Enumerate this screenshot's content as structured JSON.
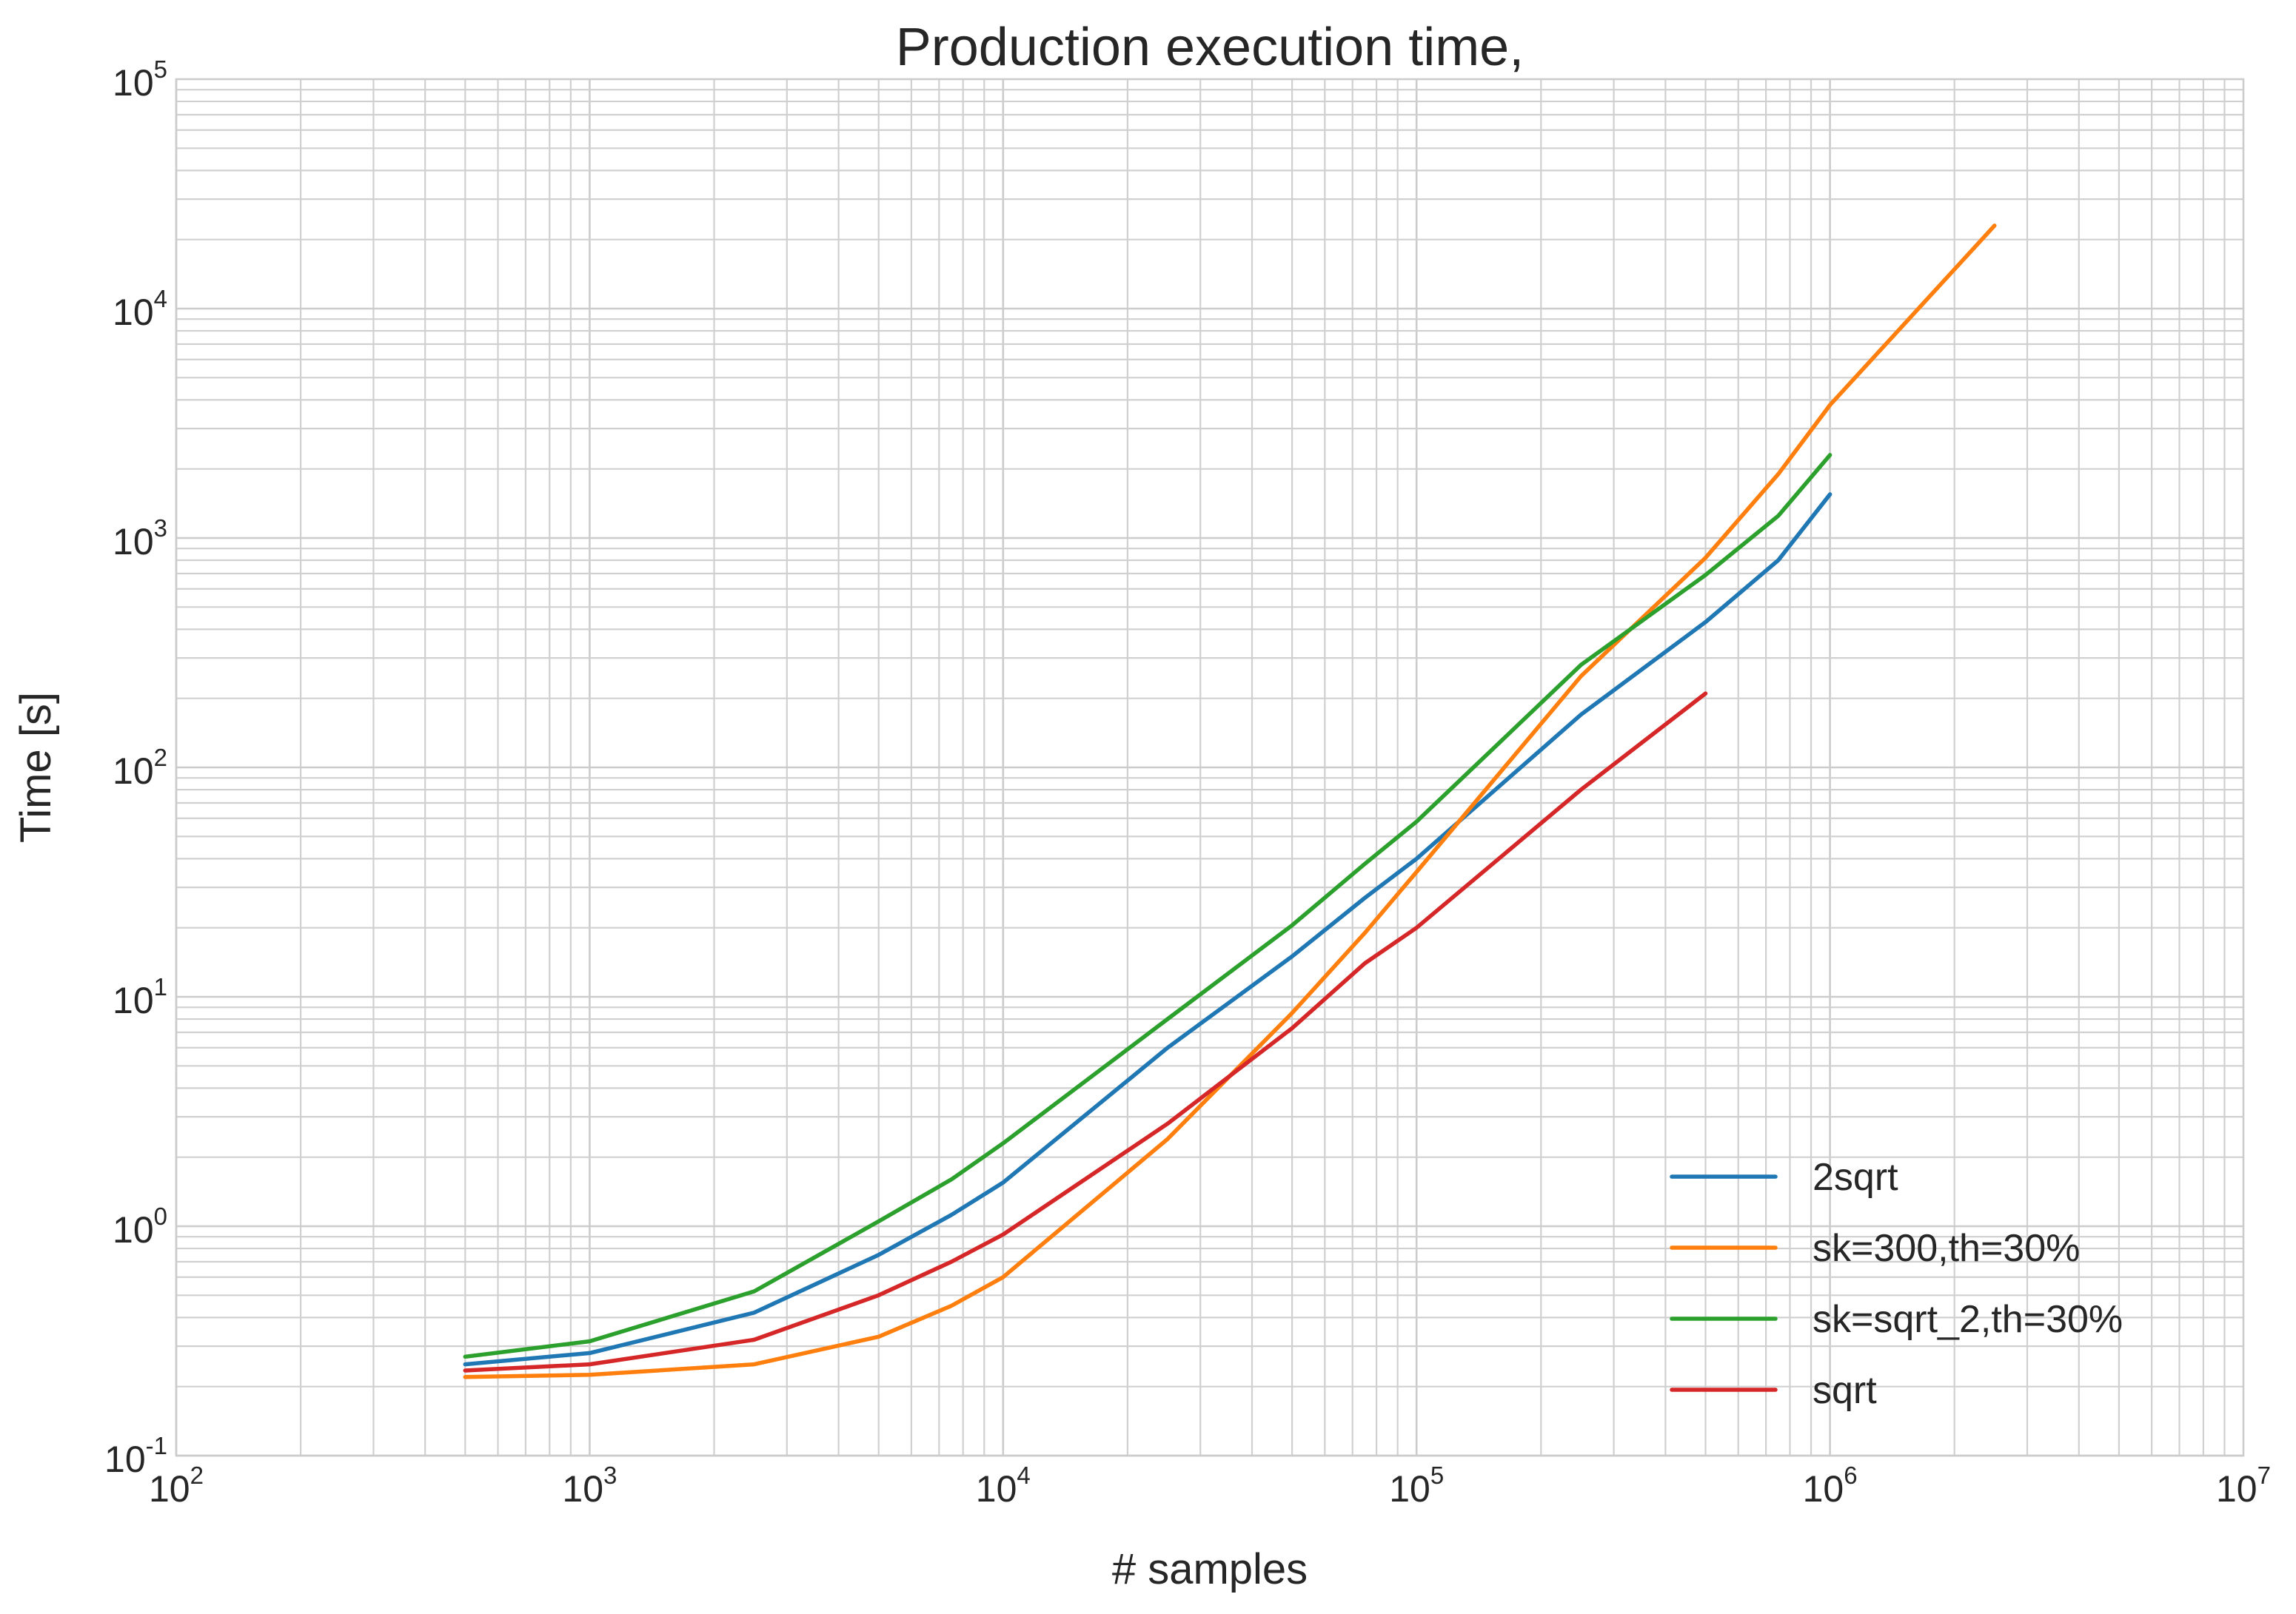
{
  "chart_data": {
    "type": "line",
    "title": "Production execution time,",
    "xlabel": "# samples",
    "ylabel": "Time [s]",
    "xscale": "log",
    "yscale": "log",
    "xlim": [
      100,
      10000000
    ],
    "ylim": [
      0.1,
      100000
    ],
    "grid": true,
    "legend_position": "lower-right",
    "x_ticks": [
      {
        "base": "10",
        "exp": "2",
        "value": 100
      },
      {
        "base": "10",
        "exp": "3",
        "value": 1000
      },
      {
        "base": "10",
        "exp": "4",
        "value": 10000
      },
      {
        "base": "10",
        "exp": "5",
        "value": 100000
      },
      {
        "base": "10",
        "exp": "6",
        "value": 1000000
      },
      {
        "base": "10",
        "exp": "7",
        "value": 10000000
      }
    ],
    "y_ticks": [
      {
        "base": "10",
        "exp": "-1",
        "value": 0.1
      },
      {
        "base": "10",
        "exp": "0",
        "value": 1
      },
      {
        "base": "10",
        "exp": "1",
        "value": 10
      },
      {
        "base": "10",
        "exp": "2",
        "value": 100
      },
      {
        "base": "10",
        "exp": "3",
        "value": 1000
      },
      {
        "base": "10",
        "exp": "4",
        "value": 10000
      },
      {
        "base": "10",
        "exp": "5",
        "value": 100000
      }
    ],
    "series": [
      {
        "name": "2sqrt",
        "color": "#1f77b4",
        "x": [
          500,
          1000,
          2500,
          5000,
          7500,
          10000,
          25000,
          50000,
          75000,
          100000,
          250000,
          500000,
          750000,
          1000000
        ],
        "y": [
          0.25,
          0.28,
          0.42,
          0.75,
          1.12,
          1.55,
          6.0,
          15.0,
          27.0,
          40.0,
          170.0,
          430.0,
          800.0,
          1550.0
        ]
      },
      {
        "name": "sk=300,th=30%",
        "color": "#ff7f0e",
        "x": [
          500,
          1000,
          2500,
          5000,
          7500,
          10000,
          25000,
          50000,
          75000,
          100000,
          250000,
          500000,
          750000,
          1000000,
          2500000
        ],
        "y": [
          0.22,
          0.225,
          0.25,
          0.33,
          0.45,
          0.6,
          2.4,
          8.5,
          19.0,
          35.0,
          250.0,
          820.0,
          1900.0,
          3800.0,
          23000.0
        ]
      },
      {
        "name": "sk=sqrt_2,th=30%",
        "color": "#2ca02c",
        "x": [
          500,
          1000,
          2500,
          5000,
          7500,
          10000,
          25000,
          50000,
          75000,
          100000,
          250000,
          500000,
          750000,
          1000000
        ],
        "y": [
          0.27,
          0.315,
          0.52,
          1.05,
          1.6,
          2.3,
          8.0,
          20.5,
          38.0,
          58.0,
          280.0,
          690.0,
          1250.0,
          2300.0
        ]
      },
      {
        "name": "sqrt",
        "color": "#d62728",
        "x": [
          500,
          1000,
          2500,
          5000,
          7500,
          10000,
          25000,
          50000,
          75000,
          100000,
          250000,
          500000
        ],
        "y": [
          0.235,
          0.25,
          0.32,
          0.5,
          0.7,
          0.92,
          2.8,
          7.3,
          14.0,
          20.0,
          80.0,
          210.0
        ]
      }
    ]
  }
}
